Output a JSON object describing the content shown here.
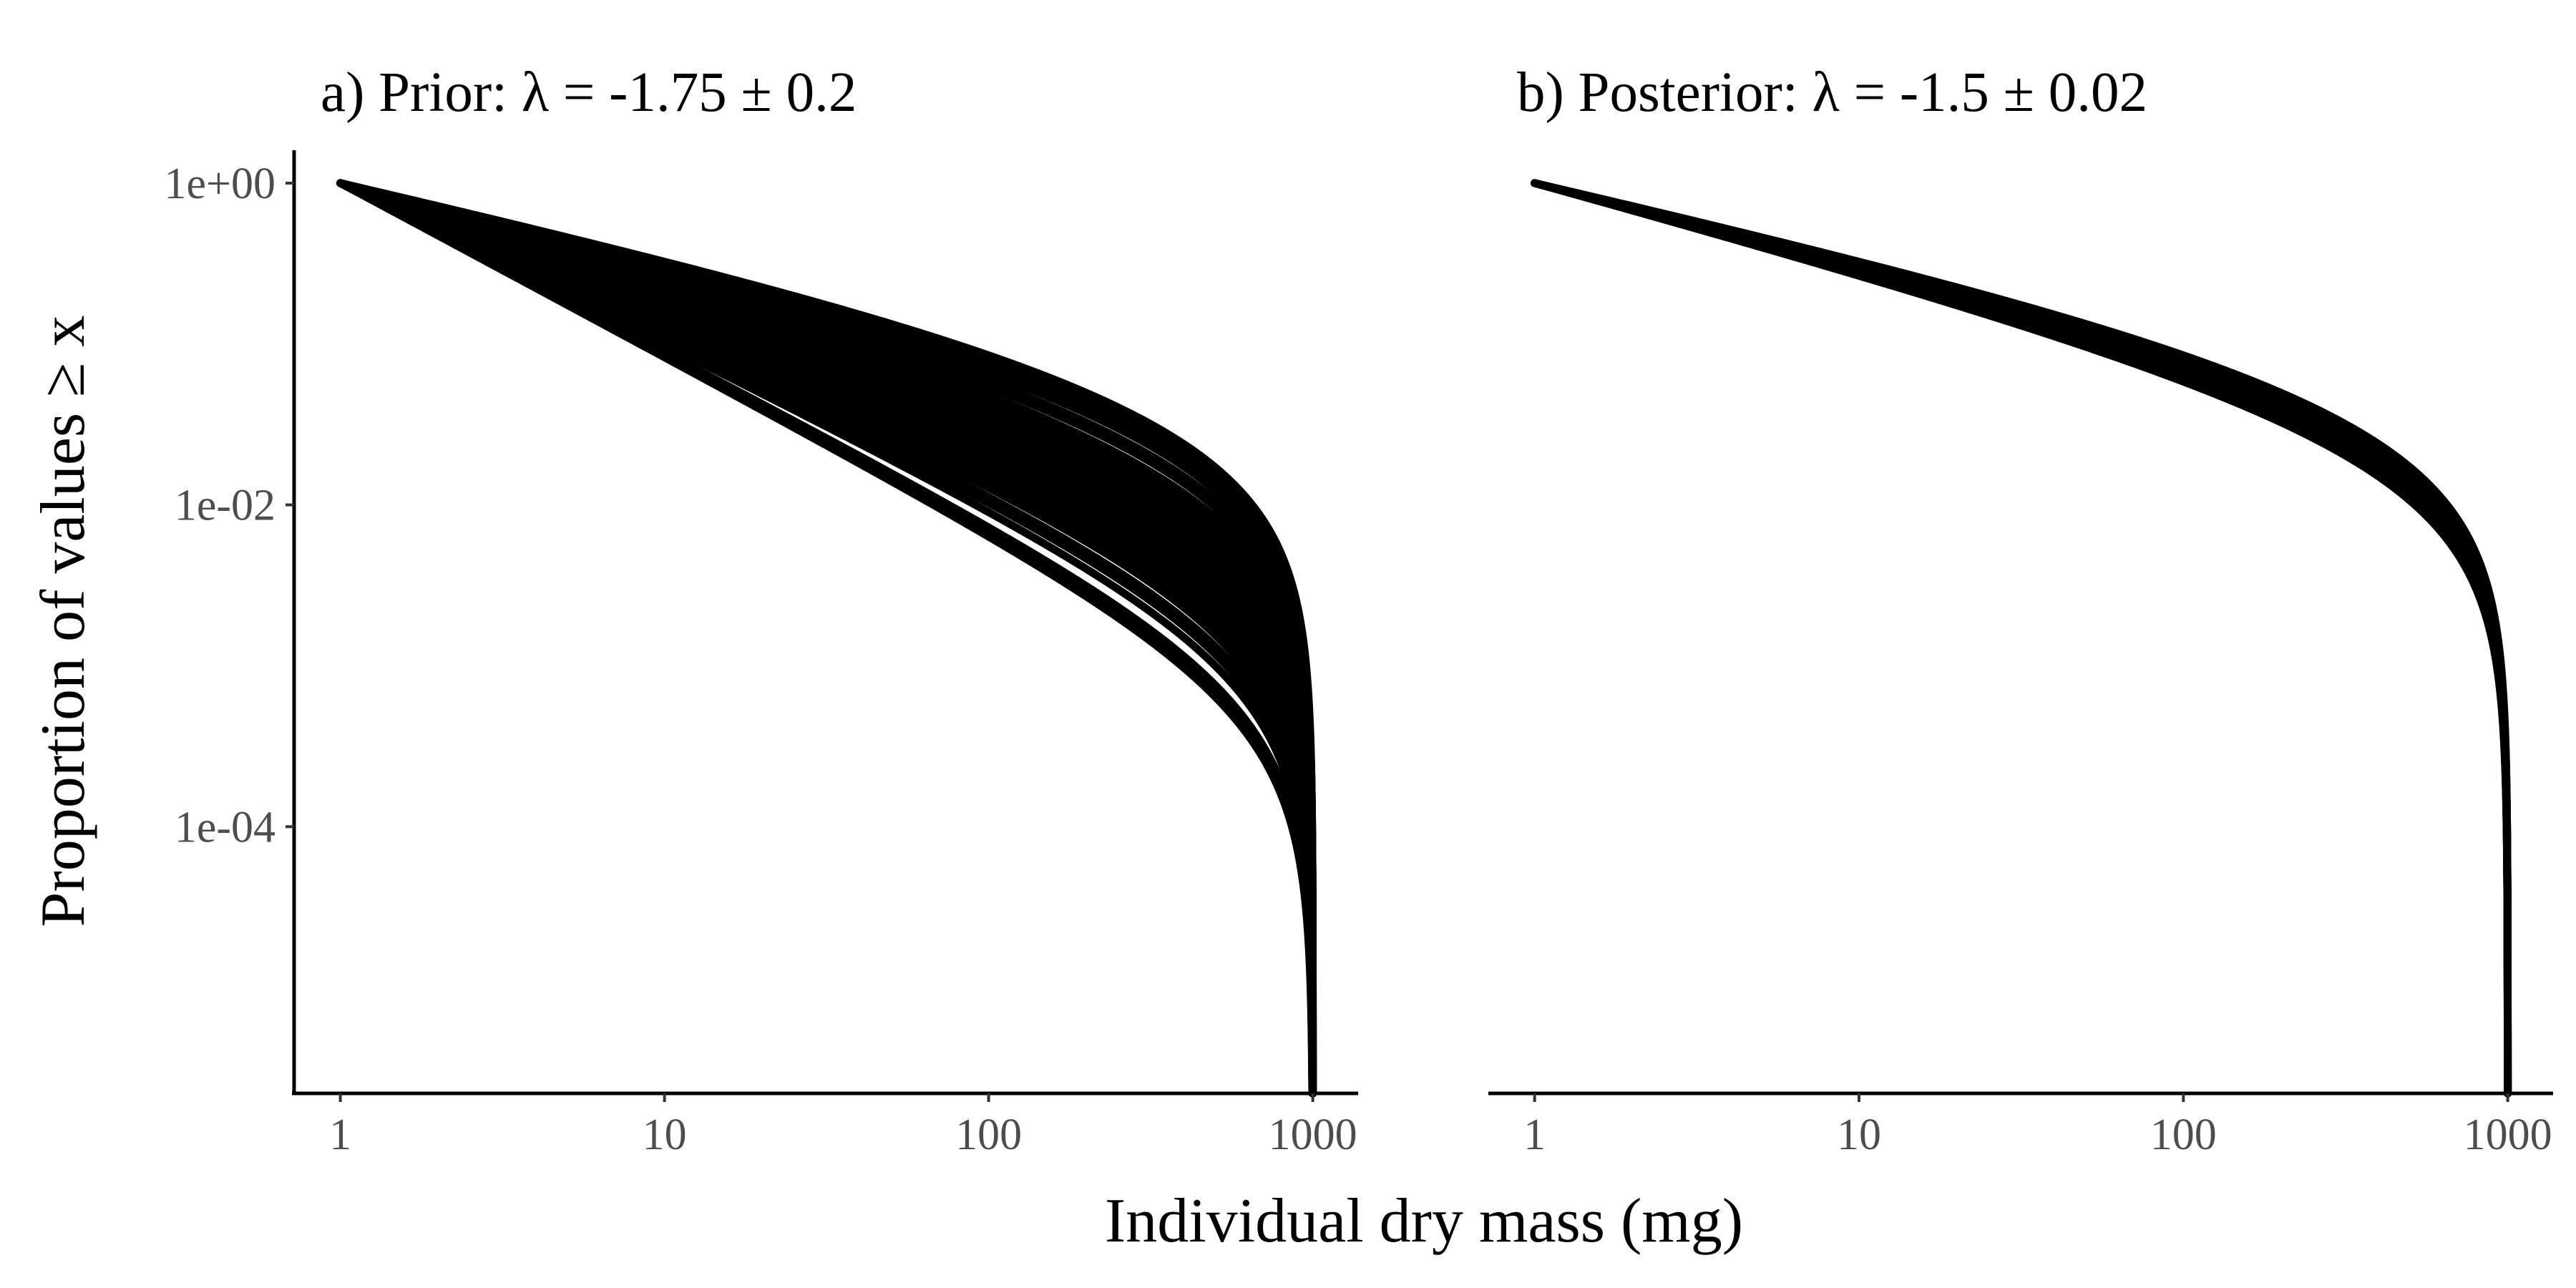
{
  "chart_data": {
    "type": "line",
    "ylabel": "Proportion of values ≥ x",
    "xlabel": "Individual dry mass (mg)",
    "x_scale": "log10",
    "y_scale": "log10",
    "xlim": [
      0.72,
      1380
    ],
    "ylim": [
      2.2e-06,
      1.6
    ],
    "x_ticks": [
      1,
      10,
      100,
      1000
    ],
    "x_tick_labels": [
      "1",
      "10",
      "100",
      "1000"
    ],
    "y_ticks": [
      1,
      0.01,
      0.0001
    ],
    "y_tick_labels": [
      "1e+00",
      "1e-02",
      "1e-04"
    ],
    "grid": false,
    "legend": "none",
    "x_min": 1,
    "x_max": 1000,
    "panels": [
      {
        "title": "a) Prior: λ = -1.75 ± 0.2",
        "lambda_mean": -1.75,
        "lambda_sd": 0.2,
        "lambdas": [
          -2.08,
          -2.06,
          -2.05,
          -2.0,
          -1.97,
          -1.95,
          -1.92,
          -1.9,
          -1.88,
          -1.86,
          -1.85,
          -1.84,
          -1.83,
          -1.82,
          -1.81,
          -1.8,
          -1.79,
          -1.78,
          -1.77,
          -1.76,
          -1.75,
          -1.74,
          -1.73,
          -1.72,
          -1.71,
          -1.7,
          -1.69,
          -1.68,
          -1.67,
          -1.66,
          -1.65,
          -1.64,
          -1.62,
          -1.6,
          -1.57,
          -1.55,
          -1.52,
          -1.5,
          -1.48,
          -1.47,
          -1.46,
          -1.45
        ]
      },
      {
        "title": "b) Posterior: λ = -1.5 ± 0.02",
        "lambda_mean": -1.5,
        "lambda_sd": 0.02,
        "lambdas": [
          -1.55,
          -1.54,
          -1.53,
          -1.52,
          -1.51,
          -1.5,
          -1.49,
          -1.48,
          -1.47,
          -1.46,
          -1.45
        ]
      }
    ]
  }
}
